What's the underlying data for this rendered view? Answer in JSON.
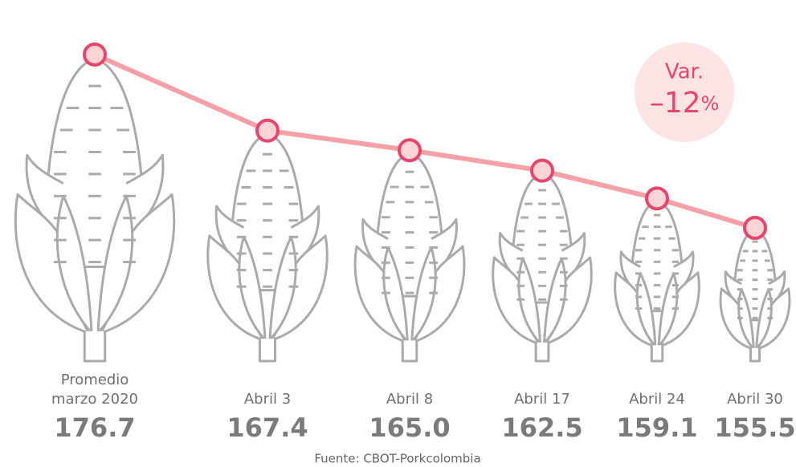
{
  "chart_data": {
    "type": "line",
    "categories": [
      "Promedio marzo 2020",
      "Abril 3",
      "Abril 8",
      "Abril 17",
      "Abril 24",
      "Abril 30"
    ],
    "values": [
      176.7,
      167.4,
      165.0,
      162.5,
      159.1,
      155.5
    ],
    "value_labels": [
      "176.7",
      "167.4",
      "165.0",
      "162.5",
      "159.1",
      "155.5"
    ],
    "color": "#f4a0a6",
    "annotation": {
      "label": "Var.",
      "value": "–12",
      "unit": "%"
    },
    "source": "Fuente: CBOT-Porkcolombia"
  }
}
